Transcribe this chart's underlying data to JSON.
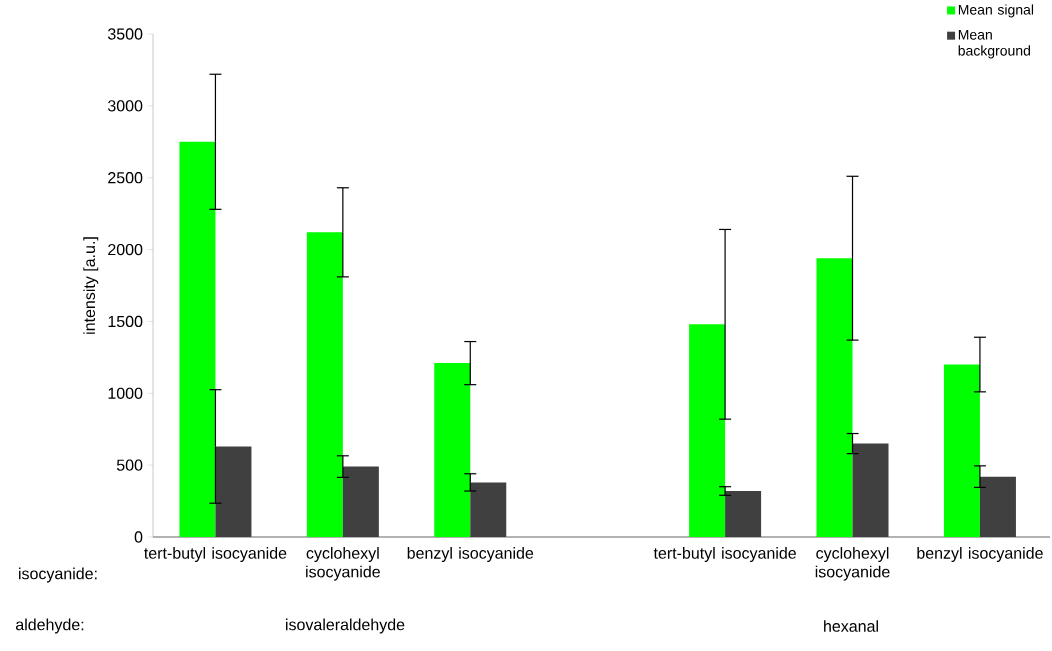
{
  "chart_data": {
    "type": "bar",
    "ylabel": "intensity [a.u.]",
    "categories": [
      "tert-butyl isocyanide",
      "cyclohexyl isocyanide",
      "benzyl isocyanide",
      null,
      "tert-butyl isocyanide",
      "cyclohexyl isocyanide",
      "benzyl isocyanide"
    ],
    "series": [
      {
        "name": "Mean signal",
        "color": "#00ff00",
        "values": [
          2750,
          2120,
          1210,
          null,
          1480,
          1940,
          1200
        ],
        "errors": [
          470,
          310,
          150,
          null,
          660,
          570,
          190
        ]
      },
      {
        "name": "Mean background",
        "color": "#404040",
        "values": [
          630,
          490,
          380,
          null,
          320,
          650,
          420
        ],
        "errors": [
          395,
          75,
          60,
          null,
          30,
          70,
          75
        ]
      }
    ],
    "ylim": [
      0,
      3500
    ],
    "yticks": [
      0,
      500,
      1000,
      1500,
      2000,
      2500,
      3000,
      3500
    ],
    "grid": false,
    "legend": "top right",
    "annotations": [
      "isocyanide:",
      "aldehyde:",
      "isovaleraldehyde",
      "hexanal"
    ]
  }
}
